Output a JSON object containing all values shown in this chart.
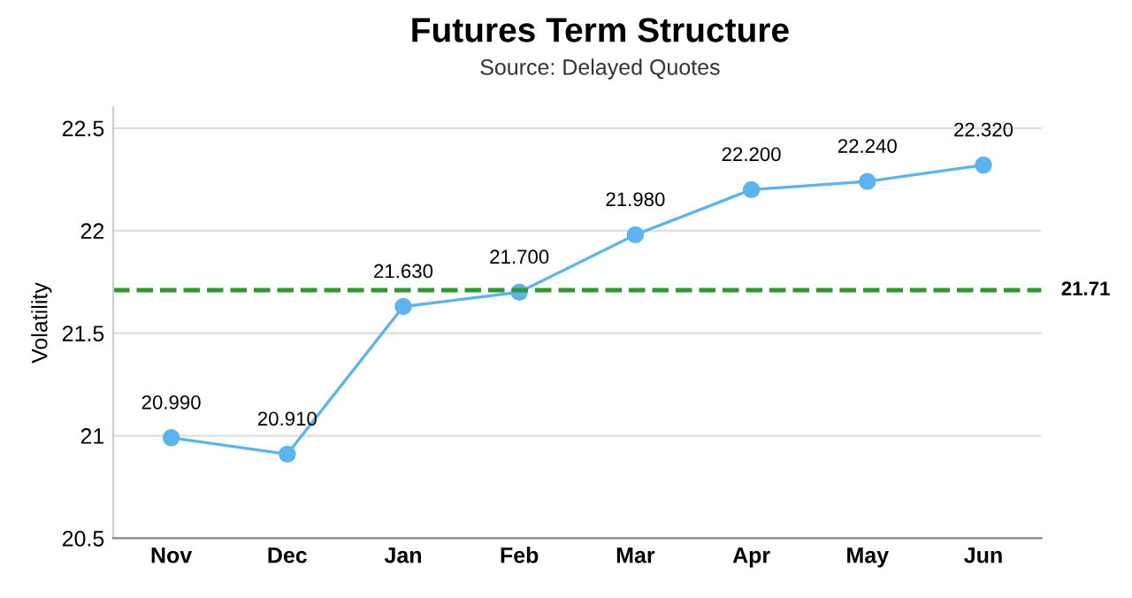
{
  "chart_data": {
    "type": "line",
    "title": "Futures Term Structure",
    "subtitle": "Source: Delayed Quotes",
    "ylabel": "Volatility",
    "categories": [
      "Nov",
      "Dec",
      "Jan",
      "Feb",
      "Mar",
      "Apr",
      "May",
      "Jun"
    ],
    "series": [
      {
        "color": "#5ab4f0",
        "values": [
          20.99,
          20.91,
          21.63,
          21.7,
          21.98,
          22.2,
          22.24,
          22.32
        ],
        "value_labels": [
          "20.990",
          "20.910",
          "21.630",
          "21.700",
          "21.980",
          "22.200",
          "22.240",
          "22.320"
        ]
      }
    ],
    "ylim": [
      20.5,
      22.6
    ],
    "yticks": [
      20.5,
      21,
      21.5,
      22,
      22.5
    ],
    "grid": "y",
    "marker": "circle",
    "line_style": "solid",
    "ref_lines": [
      {
        "axis": "y",
        "value": 21.71,
        "label": "21.71",
        "color": "#2a9a2a",
        "line_style": "dashed"
      }
    ]
  }
}
